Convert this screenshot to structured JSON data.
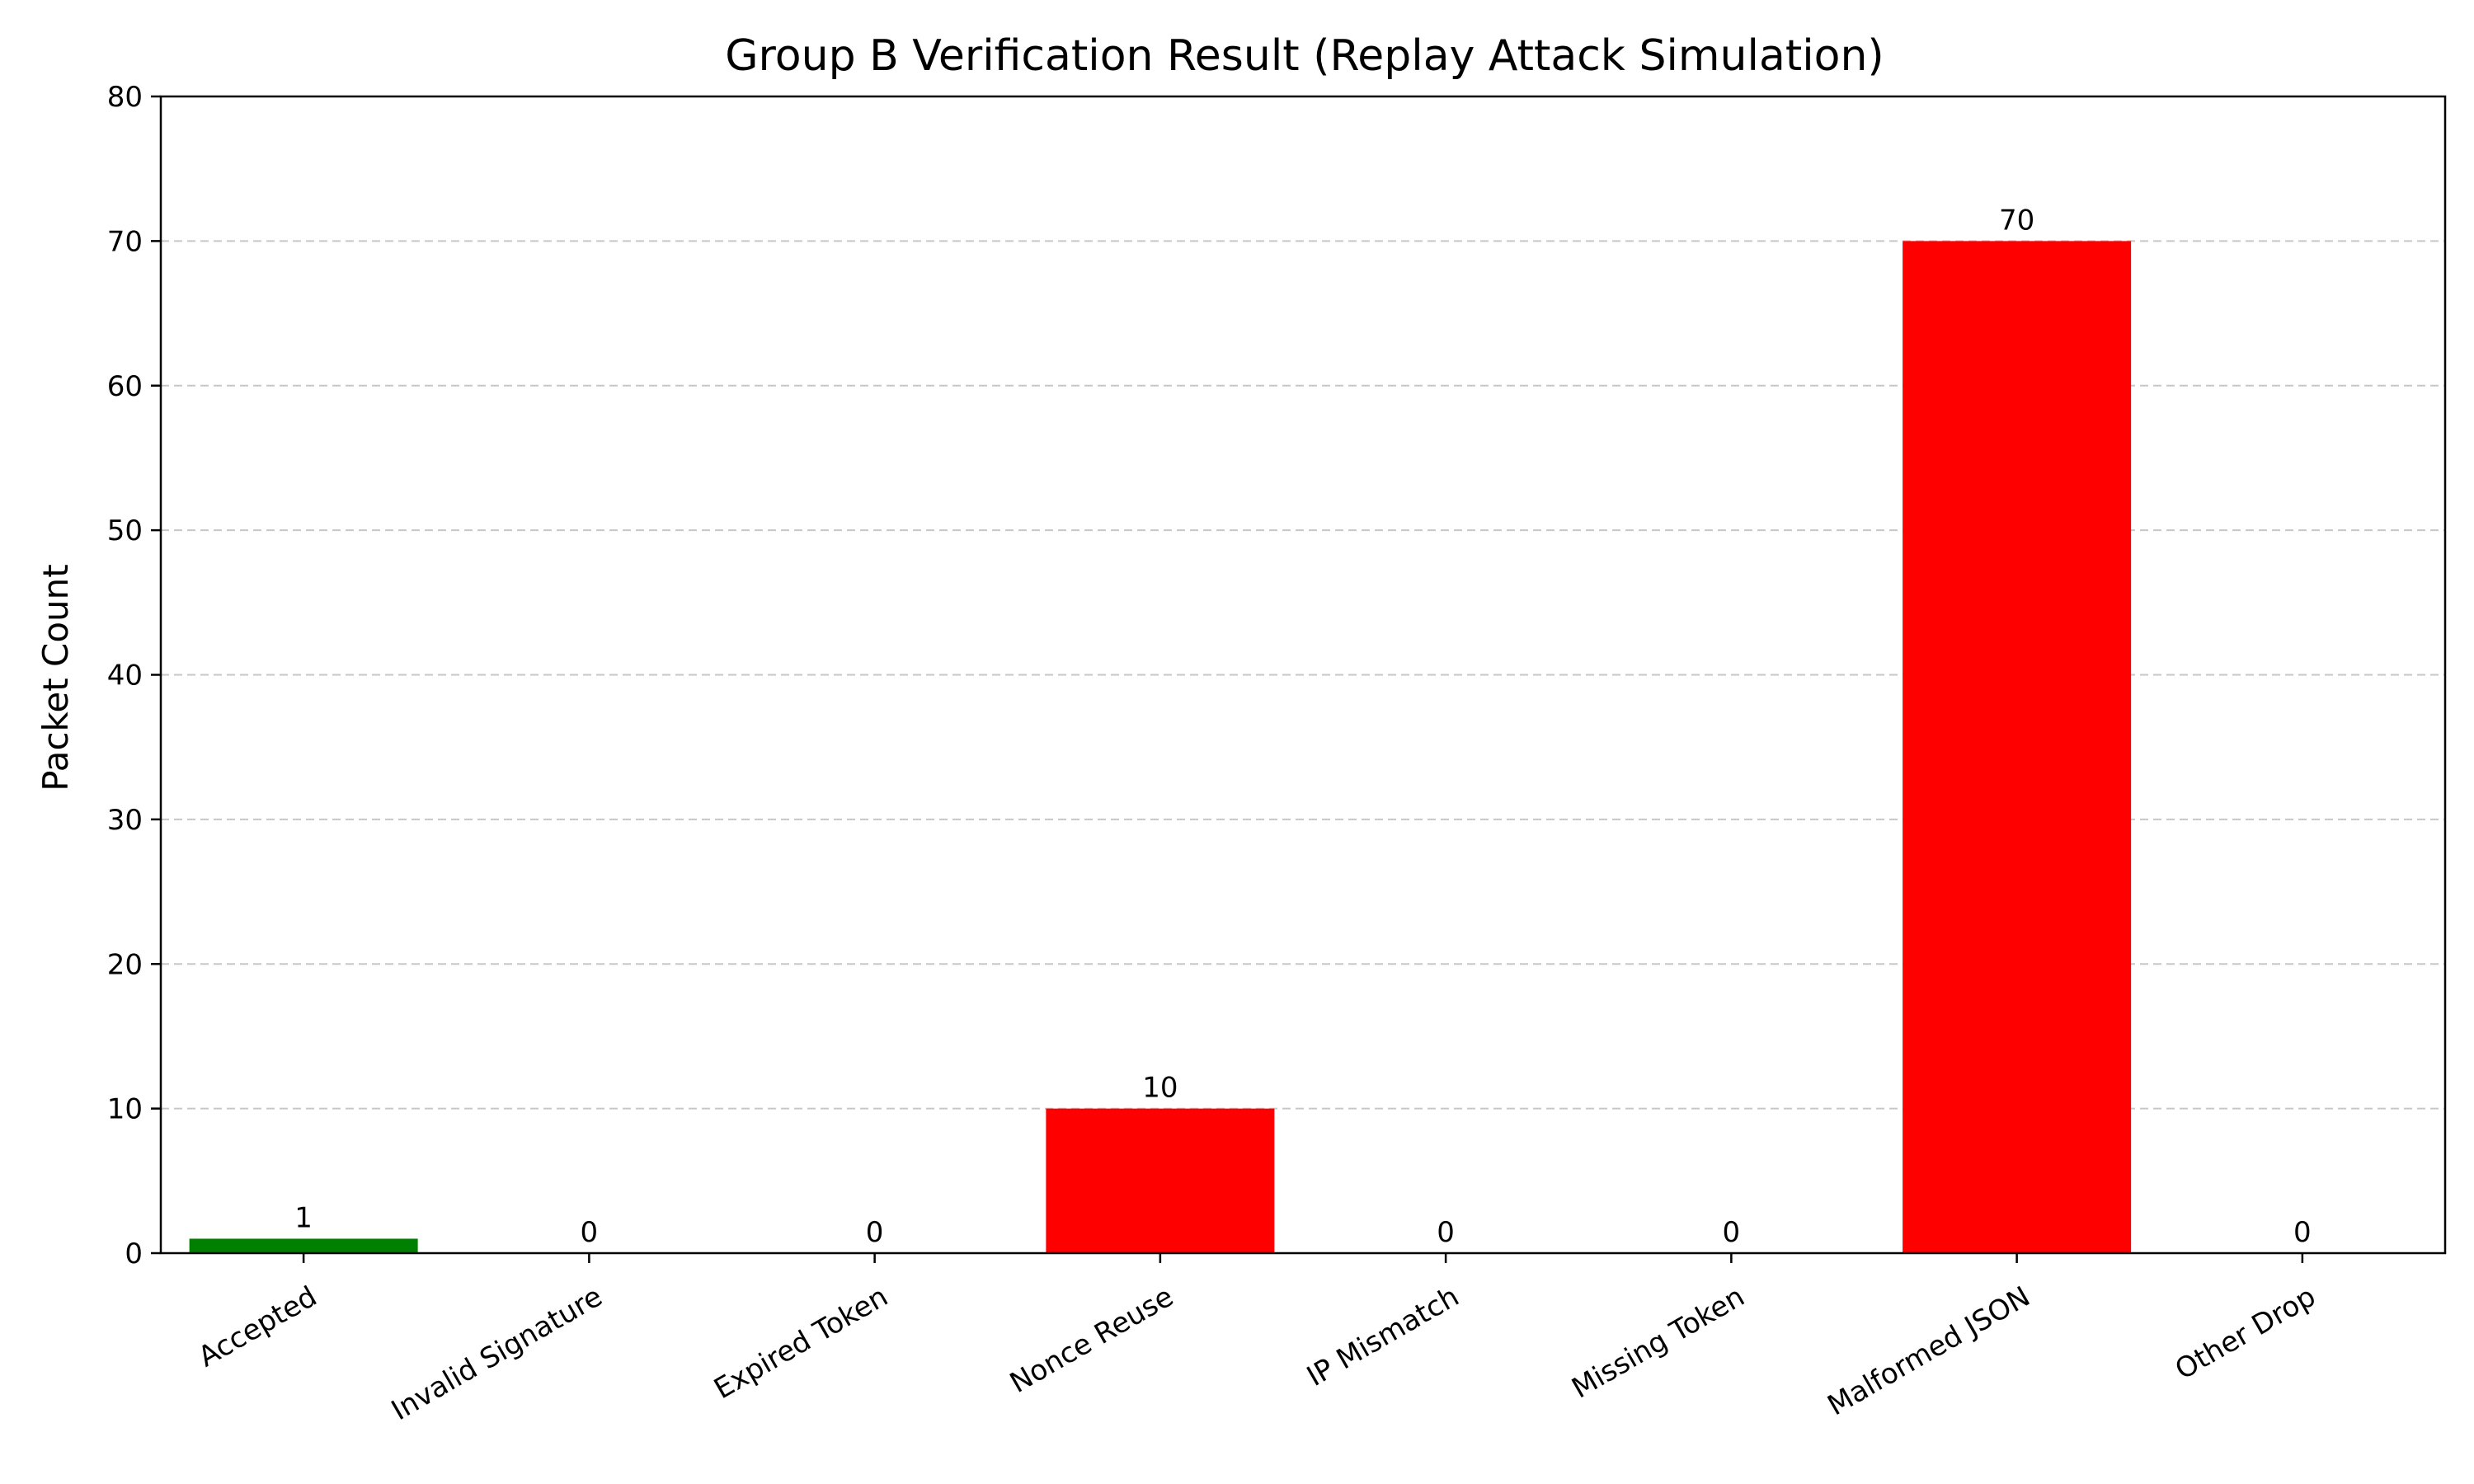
{
  "chart_data": {
    "type": "bar",
    "title": "Group B Verification Result (Replay Attack Simulation)",
    "xlabel": "",
    "ylabel": "Packet Count",
    "ylim": [
      0,
      80
    ],
    "yticks": [
      0,
      10,
      20,
      30,
      40,
      50,
      60,
      70,
      80
    ],
    "grid": "y-dashed",
    "categories": [
      "Accepted",
      "Invalid Signature",
      "Expired Token",
      "Nonce Reuse",
      "IP Mismatch",
      "Missing Token",
      "Malformed JSON",
      "Other Drop"
    ],
    "values": [
      1,
      0,
      0,
      10,
      0,
      0,
      70,
      0
    ],
    "colors": [
      "#008000",
      "#ff0000",
      "#ff0000",
      "#ff0000",
      "#ff0000",
      "#ff0000",
      "#ff0000",
      "#ff0000"
    ]
  }
}
